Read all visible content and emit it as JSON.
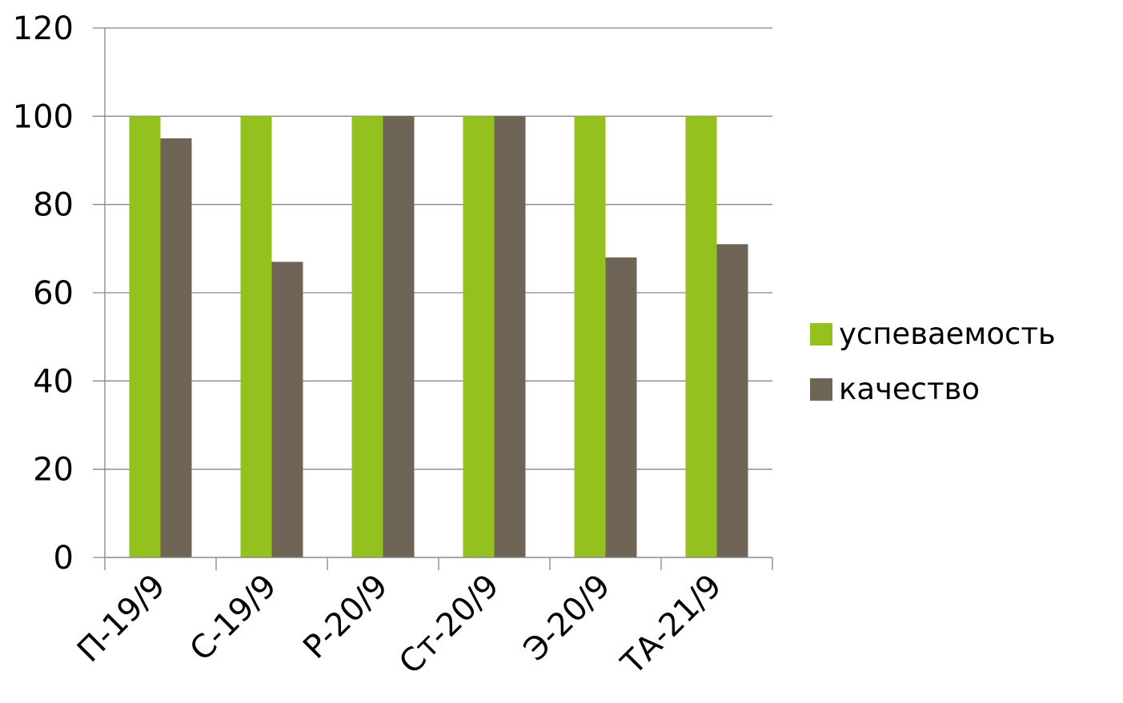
{
  "chart_data": {
    "type": "bar",
    "categories": [
      "П-19/9",
      "С-19/9",
      "Р-20/9",
      "Ст-20/9",
      "Э-20/9",
      "ТА-21/9"
    ],
    "series": [
      {
        "name": "успеваемость",
        "values": [
          100,
          100,
          100,
          100,
          100,
          100
        ],
        "color": "#95C11F"
      },
      {
        "name": "качество",
        "values": [
          95,
          67,
          100,
          100,
          68,
          71
        ],
        "color": "#6F6556"
      }
    ],
    "ylim": [
      0,
      120
    ],
    "yticks": [
      0,
      20,
      40,
      60,
      80,
      100,
      120
    ],
    "grid": true,
    "legend_position": "right"
  }
}
